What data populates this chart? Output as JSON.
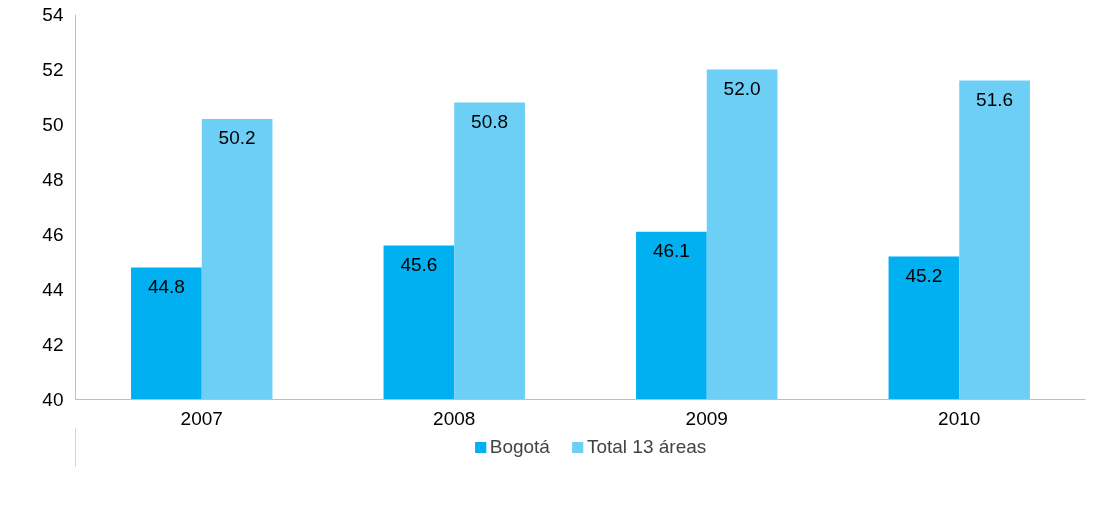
{
  "chart_data": {
    "type": "bar",
    "categories": [
      "2007",
      "2008",
      "2009",
      "2010"
    ],
    "series": [
      {
        "name": "Bogotá",
        "color": "#00b0f0",
        "values": [
          44.8,
          45.6,
          46.1,
          45.2
        ],
        "value_labels": [
          "44.8",
          "45.6",
          "46.1",
          "45.2"
        ]
      },
      {
        "name": "Total 13 áreas",
        "color": "#6dcff6",
        "values": [
          50.2,
          50.8,
          52.0,
          51.6
        ],
        "value_labels": [
          "50.2",
          "50.8",
          "52.0",
          "51.6"
        ]
      }
    ],
    "ylim": [
      40,
      54
    ],
    "yticks": [
      40,
      42,
      44,
      46,
      48,
      50,
      52,
      54
    ],
    "grid": false,
    "legend": "bottom"
  }
}
